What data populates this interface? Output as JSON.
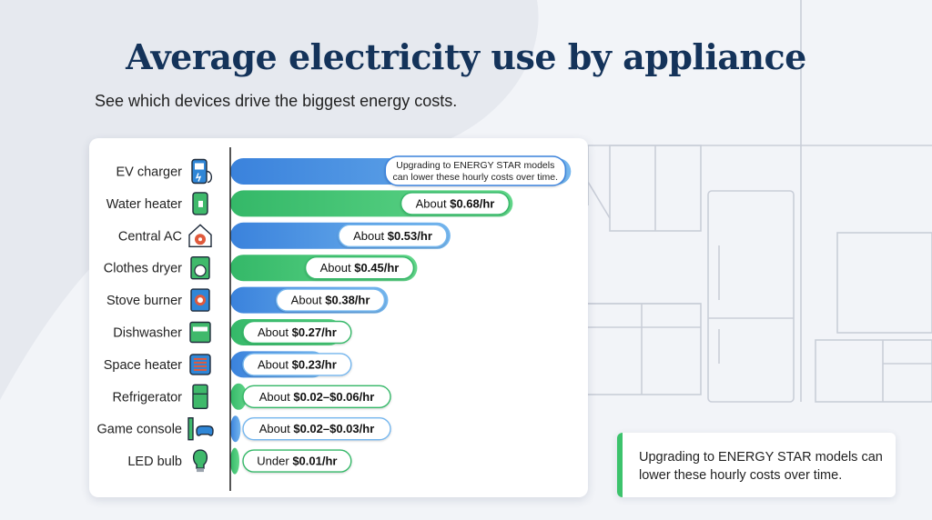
{
  "title": "Average electricity use by appliance",
  "subtitle": "See which devices drive the biggest energy costs.",
  "note": {
    "text": "Upgrading to ENERGY STAR models can lower these hourly costs over time."
  },
  "chart_data": {
    "type": "bar",
    "orientation": "horizontal",
    "title": "Average electricity use by appliance",
    "subtitle": "See which devices drive the biggest energy costs.",
    "unit": "$/hr",
    "categories": [
      "EV charger",
      "Water heater",
      "Central AC",
      "Clothes dryer",
      "Stove burner",
      "Dishwasher",
      "Space heater",
      "Refrigerator",
      "Game console",
      "LED bulb"
    ],
    "values": [
      0.82,
      0.68,
      0.53,
      0.45,
      0.38,
      0.27,
      0.23,
      0.04,
      0.025,
      0.01
    ],
    "labels": [
      {
        "prefix": "",
        "value": ""
      },
      {
        "prefix": "About ",
        "value": "$0.68/hr"
      },
      {
        "prefix": "About ",
        "value": "$0.53/hr"
      },
      {
        "prefix": "About ",
        "value": "$0.45/hr"
      },
      {
        "prefix": "About ",
        "value": "$0.38/hr"
      },
      {
        "prefix": "About ",
        "value": "$0.27/hr"
      },
      {
        "prefix": "About ",
        "value": "$0.23/hr"
      },
      {
        "prefix": "About ",
        "value": "$0.02–$0.06/hr"
      },
      {
        "prefix": "About ",
        "value": "$0.02–$0.03/hr"
      },
      {
        "prefix": "Under ",
        "value": "$0.01/hr"
      }
    ],
    "icons": [
      "ev-charger-icon",
      "water-heater-icon",
      "house-fan-icon",
      "dryer-icon",
      "stove-burner-icon",
      "dishwasher-icon",
      "space-heater-icon",
      "refrigerator-icon",
      "game-console-icon",
      "light-bulb-icon"
    ],
    "bar_colors": [
      "blue",
      "green",
      "blue",
      "green",
      "blue",
      "green",
      "blue",
      "green",
      "blue",
      "green"
    ],
    "top_bar_callout": {
      "line1": "Upgrading to ENERGY STAR models",
      "line2": "can lower these hourly costs over time."
    },
    "colors": {
      "blue_dark": "#3a82dc",
      "blue_light": "#74b6ee",
      "green_dark": "#34b868",
      "green_light": "#62d78a",
      "icon_blue": "#2f86d6",
      "icon_green": "#3fb96b",
      "icon_red": "#e05a3c",
      "title": "#14335a"
    },
    "xlim": [
      0,
      0.85
    ],
    "grid": false,
    "legend": "none"
  }
}
